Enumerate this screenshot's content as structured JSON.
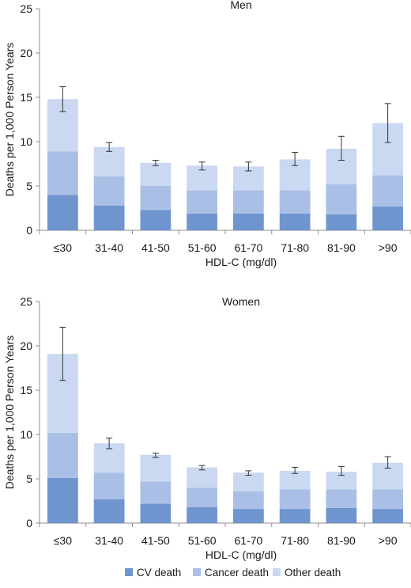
{
  "colors": {
    "cv": "#6f95cf",
    "cancer": "#a9bfe5",
    "other": "#cad8f1",
    "axis": "#8c8c8c",
    "errorbar": "#333333",
    "text": "#1a1a1a"
  },
  "legend": {
    "items": [
      {
        "key": "cv",
        "label": "CV death"
      },
      {
        "key": "cancer",
        "label": "Cancer death"
      },
      {
        "key": "other",
        "label": "Other death"
      }
    ]
  },
  "chart_data": [
    {
      "type": "bar",
      "stacked": true,
      "title": "Men",
      "xlabel": "HDL-C (mg/dl)",
      "ylabel": "Deaths per 1,000 Person Years",
      "ylim": [
        0,
        25
      ],
      "yticks": [
        0,
        5,
        10,
        15,
        20,
        25
      ],
      "categories": [
        "≤30",
        "31-40",
        "41-50",
        "51-60",
        "61-70",
        "71-80",
        "81-90",
        ">90"
      ],
      "series": [
        {
          "name": "CV death",
          "key": "cv",
          "values": [
            4.0,
            2.8,
            2.3,
            1.9,
            1.9,
            1.9,
            1.8,
            2.7
          ]
        },
        {
          "name": "Cancer death",
          "key": "cancer",
          "values": [
            4.9,
            3.3,
            2.7,
            2.6,
            2.6,
            2.6,
            3.4,
            3.5
          ]
        },
        {
          "name": "Other death",
          "key": "other",
          "values": [
            5.9,
            3.3,
            2.6,
            2.8,
            2.7,
            3.5,
            4.0,
            5.9
          ]
        }
      ],
      "error_bars": [
        {
          "low": 13.4,
          "high": 16.2
        },
        {
          "low": 8.9,
          "high": 9.9
        },
        {
          "low": 7.3,
          "high": 7.9
        },
        {
          "low": 6.8,
          "high": 7.7
        },
        {
          "low": 6.7,
          "high": 7.7
        },
        {
          "low": 7.3,
          "high": 8.8
        },
        {
          "low": 7.9,
          "high": 10.6
        },
        {
          "low": 9.9,
          "high": 14.3
        }
      ]
    },
    {
      "type": "bar",
      "stacked": true,
      "title": "Women",
      "xlabel": "HDL-C (mg/dl)",
      "ylabel": "Deaths per 1,000 Person Years",
      "ylim": [
        0,
        25
      ],
      "yticks": [
        0,
        5,
        10,
        15,
        20,
        25
      ],
      "categories": [
        "≤30",
        "31-40",
        "41-50",
        "51-60",
        "61-70",
        "71-80",
        "81-90",
        ">90"
      ],
      "series": [
        {
          "name": "CV death",
          "key": "cv",
          "values": [
            5.1,
            2.7,
            2.2,
            1.8,
            1.6,
            1.6,
            1.7,
            1.6
          ]
        },
        {
          "name": "Cancer death",
          "key": "cancer",
          "values": [
            5.1,
            3.0,
            2.5,
            2.2,
            2.0,
            2.2,
            2.1,
            2.2
          ]
        },
        {
          "name": "Other death",
          "key": "other",
          "values": [
            8.9,
            3.3,
            3.0,
            2.3,
            2.1,
            2.1,
            2.0,
            3.0
          ]
        }
      ],
      "error_bars": [
        {
          "low": 16.1,
          "high": 22.1
        },
        {
          "low": 8.4,
          "high": 9.6
        },
        {
          "low": 7.4,
          "high": 7.9
        },
        {
          "low": 6.0,
          "high": 6.5
        },
        {
          "low": 5.4,
          "high": 5.9
        },
        {
          "low": 5.6,
          "high": 6.3
        },
        {
          "low": 5.4,
          "high": 6.4
        },
        {
          "low": 6.2,
          "high": 7.5
        }
      ]
    }
  ]
}
